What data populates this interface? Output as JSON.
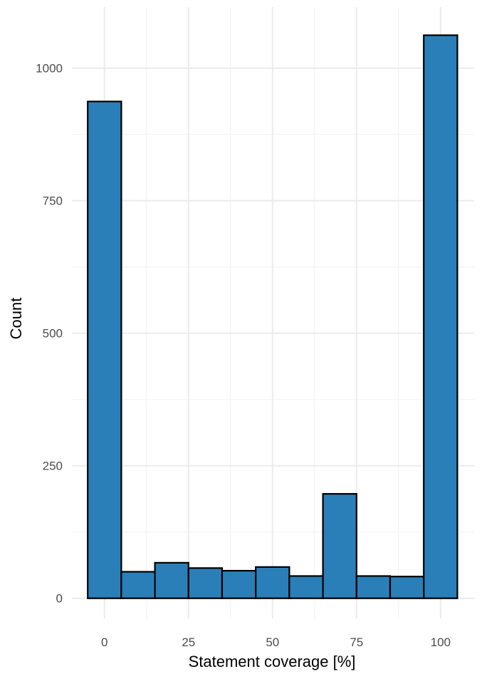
{
  "chart_data": {
    "type": "bar",
    "subtype": "histogram",
    "title": "",
    "xlabel": "Statement coverage [%]",
    "ylabel": "Count",
    "bin_width": 10,
    "bins": [
      {
        "center": 0,
        "count": 937
      },
      {
        "center": 10,
        "count": 50
      },
      {
        "center": 20,
        "count": 67
      },
      {
        "center": 30,
        "count": 57
      },
      {
        "center": 40,
        "count": 52
      },
      {
        "center": 50,
        "count": 59
      },
      {
        "center": 60,
        "count": 42
      },
      {
        "center": 70,
        "count": 197
      },
      {
        "center": 80,
        "count": 42
      },
      {
        "center": 90,
        "count": 41
      },
      {
        "center": 100,
        "count": 1062
      }
    ],
    "xlim": [
      -9.7,
      110
    ],
    "ylim": [
      -38,
      1115
    ],
    "x_ticks": [
      0,
      25,
      50,
      75,
      100
    ],
    "x_tick_labels": [
      "0",
      "25",
      "50",
      "75",
      "100"
    ],
    "x_minor_ticks": [
      12.5,
      37.5,
      62.5,
      87.5
    ],
    "y_ticks": [
      0,
      250,
      500,
      750,
      1000
    ],
    "y_tick_labels": [
      "0",
      "250",
      "500",
      "750",
      "1000"
    ],
    "y_minor_ticks": [
      125,
      375,
      625,
      875
    ],
    "grid": true,
    "legend": "none",
    "colors": {
      "bar_fill": "#2b7fb8",
      "bar_stroke": "#000000",
      "grid_major": "#ebebeb",
      "grid_minor": "#f4f4f4",
      "tick_text": "#4d4d4d",
      "title_text": "#000000"
    }
  }
}
